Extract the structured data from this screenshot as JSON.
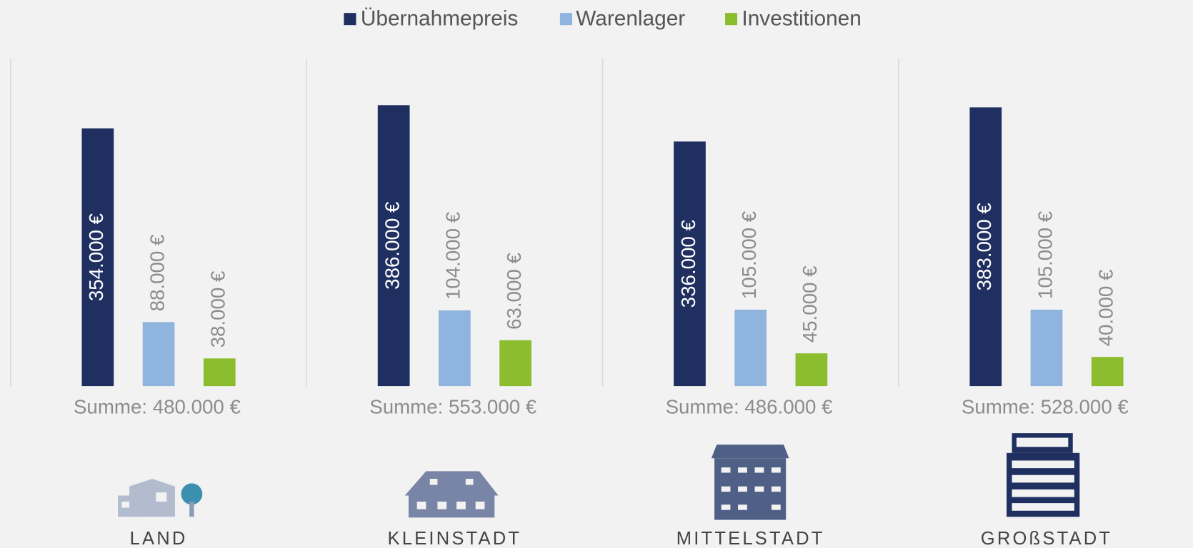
{
  "chart_data": {
    "type": "bar",
    "categories": [
      "LAND",
      "KLEINSTADT",
      "MITTELSTADT",
      "GROßSTADT"
    ],
    "series": [
      {
        "name": "Übernahmepreis",
        "color": "#1f3060",
        "values": [
          354000,
          386000,
          336000,
          383000
        ],
        "value_labels": [
          "354.000 €",
          "386.000 €",
          "336.000 €",
          "383.000 €"
        ]
      },
      {
        "name": "Warenlager",
        "color": "#8fb4dd",
        "values": [
          88000,
          104000,
          105000,
          105000
        ],
        "value_labels": [
          "88.000 €",
          "104.000 €",
          "105.000 €",
          "105.000 €"
        ]
      },
      {
        "name": "Investitionen",
        "color": "#8bbd2f",
        "values": [
          38000,
          63000,
          45000,
          40000
        ],
        "value_labels": [
          "38.000 €",
          "63.000 €",
          "45.000 €",
          "40.000 €"
        ]
      }
    ],
    "sum_labels": [
      "Summe: 480.000 €",
      "Summe: 553.000 €",
      "Summe: 486.000 €",
      "Summe: 528.000 €"
    ],
    "ylim": [
      0,
      450000
    ],
    "legend": "top"
  }
}
